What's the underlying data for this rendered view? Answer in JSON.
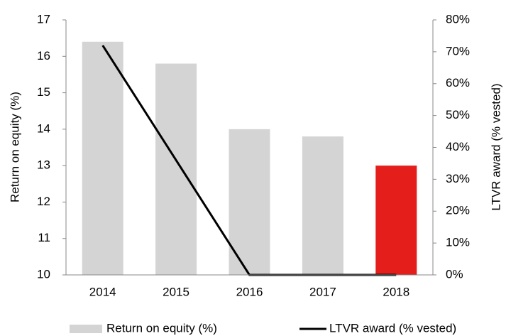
{
  "chart_data": {
    "type": "bar",
    "categories": [
      "2014",
      "2015",
      "2016",
      "2017",
      "2018"
    ],
    "series": [
      {
        "name": "Return on equity (%)",
        "type": "bar",
        "color": "#d4d4d4",
        "colors": [
          "#d4d4d4",
          "#d4d4d4",
          "#d4d4d4",
          "#d4d4d4",
          "#e41e1a"
        ],
        "values": [
          16.4,
          15.8,
          14.0,
          13.8,
          13.0
        ]
      },
      {
        "name": "LTVR award (% vested)",
        "type": "line",
        "axis": "y2",
        "color": "#000000",
        "values": [
          72,
          36,
          0,
          0,
          0
        ]
      }
    ],
    "ylabel": "Return on equity (%)",
    "y2label": "LTVR award (% vested)",
    "ylim": [
      10,
      17
    ],
    "yticks": [
      10,
      11,
      12,
      13,
      14,
      15,
      16,
      17
    ],
    "y2lim": [
      0,
      80
    ],
    "y2ticks": [
      {
        "value": 0,
        "label": "0%"
      },
      {
        "value": 10,
        "label": "10%"
      },
      {
        "value": 20,
        "label": "20%"
      },
      {
        "value": 30,
        "label": "30%"
      },
      {
        "value": 40,
        "label": "40%"
      },
      {
        "value": 50,
        "label": "50%"
      },
      {
        "value": 60,
        "label": "60%"
      },
      {
        "value": 70,
        "label": "70%"
      },
      {
        "value": 80,
        "label": "80%"
      }
    ],
    "legend": "bottom"
  }
}
